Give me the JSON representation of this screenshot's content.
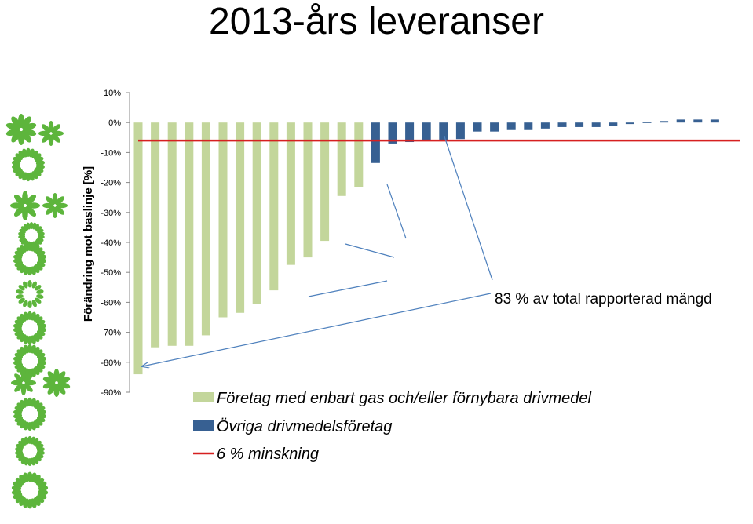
{
  "colors": {
    "gas_series": "#C3D69B",
    "other_series": "#376092",
    "reference_line": "#D62020",
    "annotation_line": "#4F81BD",
    "decor_green": "#5DB53C"
  },
  "chart_data": {
    "type": "bar",
    "title": "2013-års leveranser",
    "ylabel": "Förändring mot baslinje [%]",
    "ylim": [
      -90,
      10
    ],
    "yticks": [
      10,
      0,
      -10,
      -20,
      -30,
      -40,
      -50,
      -60,
      -70,
      -80,
      -90
    ],
    "ytick_labels": [
      "10%",
      "0%",
      "-10%",
      "-20%",
      "-30%",
      "-40%",
      "-50%",
      "-60%",
      "-70%",
      "-80%",
      "-90%"
    ],
    "grid": false,
    "legend_position": "bottom",
    "series": [
      {
        "name": "Företag med enbart gas och/eller förnybara drivmedel",
        "values": [
          -84,
          -75,
          -74.5,
          -74.5,
          -71,
          -65,
          -63.5,
          -60.5,
          -56,
          -47.5,
          -45,
          -39.5,
          -24.5,
          -21.5
        ]
      },
      {
        "name": "Övriga drivmedelsföretag",
        "values": [
          -13.5,
          -7,
          -6.5,
          -6,
          -6,
          -5.5,
          -3,
          -3,
          -2.5,
          -2.5,
          -2,
          -1.5,
          -1.5,
          -1.5,
          -1,
          -0.5,
          0,
          0.5,
          1,
          1,
          1
        ]
      }
    ],
    "reference_line": {
      "name": "6 % minskning",
      "value": -6
    },
    "annotation": "83 % av total rapporterad mängd"
  }
}
